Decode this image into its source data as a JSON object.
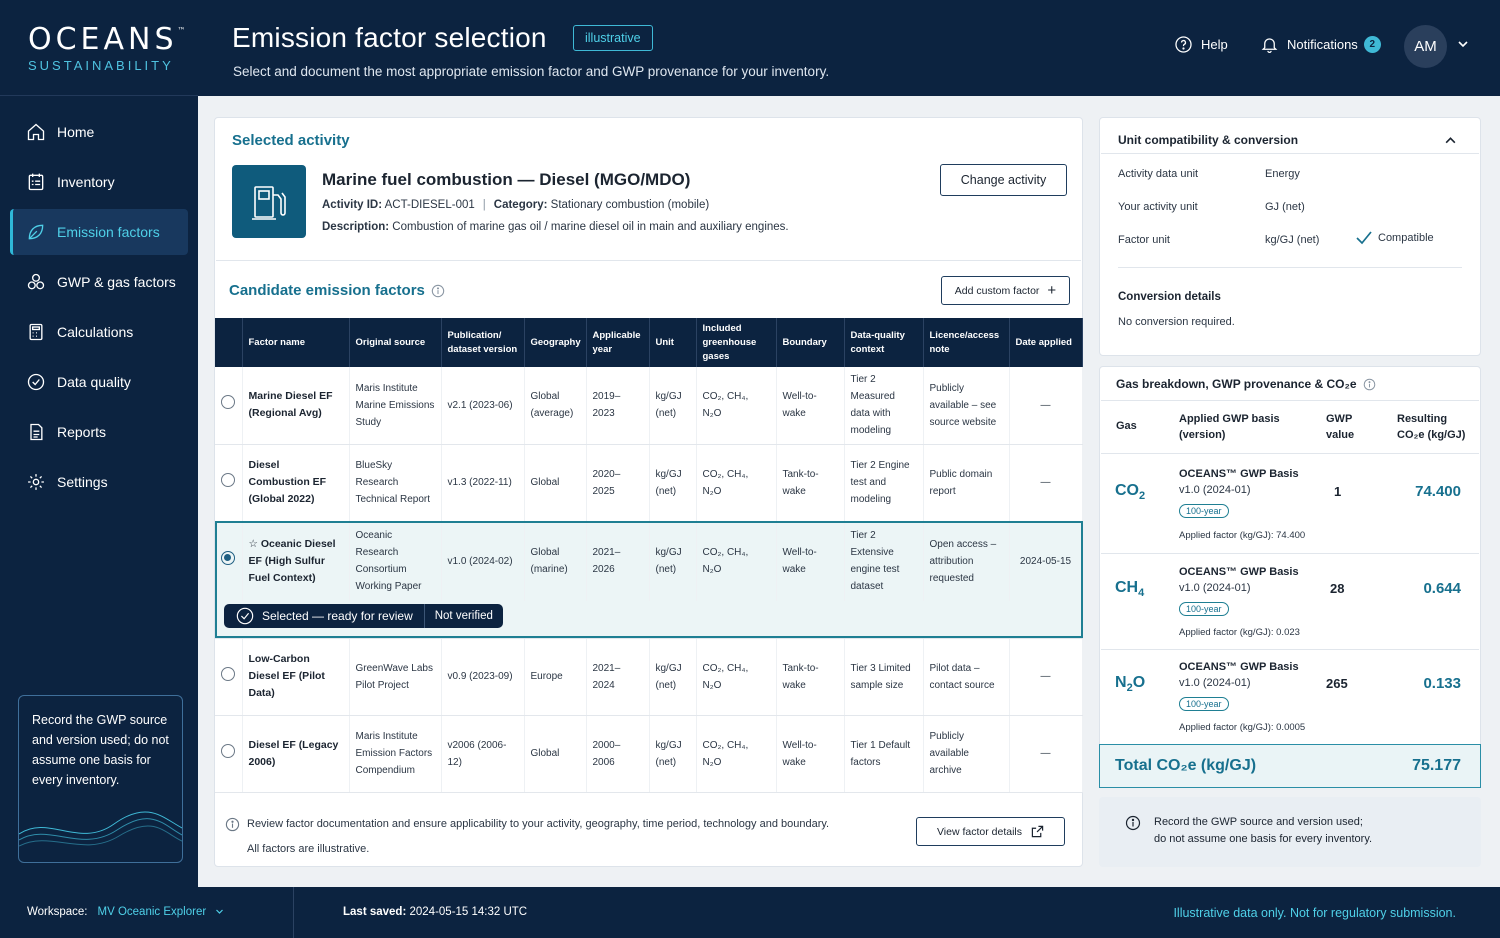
{
  "brand": {
    "name": "OCEANS",
    "tm": "™",
    "sub": "SUSTAINABILITY"
  },
  "nav": [
    {
      "label": "Home",
      "icon": "home-icon"
    },
    {
      "label": "Inventory",
      "icon": "inventory-icon"
    },
    {
      "label": "Emission factors",
      "icon": "leaf-icon",
      "active": true
    },
    {
      "label": "GWP & gas factors",
      "icon": "molecule-icon"
    },
    {
      "label": "Calculations",
      "icon": "calculator-icon"
    },
    {
      "label": "Data quality",
      "icon": "check-circle-icon"
    },
    {
      "label": "Reports",
      "icon": "report-icon"
    },
    {
      "label": "Settings",
      "icon": "gear-icon"
    }
  ],
  "tip": "Record the GWP source and version used; do not assume one basis for every inventory.",
  "header": {
    "title": "Emission factor selection",
    "badge": "illustrative",
    "subtitle": "Select and document the most appropriate emission factor and GWP provenance for your inventory.",
    "help": "Help",
    "notifications": "Notifications",
    "notif_count": "2",
    "avatar": "AM"
  },
  "activity": {
    "section": "Selected activity",
    "name": "Marine fuel combustion — Diesel (MGO/MDO)",
    "id_label": "Activity ID:",
    "id": "ACT-DIESEL-001",
    "cat_label": "Category:",
    "category": "Stationary combustion (mobile)",
    "desc_label": "Description:",
    "description": "Combustion of marine gas oil / marine diesel oil in main and auxiliary engines.",
    "change_btn": "Change activity"
  },
  "candidates": {
    "title": "Candidate emission factors",
    "add_btn": "Add custom factor",
    "columns": [
      "Factor name",
      "Original source",
      "Publication/ dataset version",
      "Geography",
      "Applicable year",
      "Unit",
      "Included greenhouse gases",
      "Boundary",
      "Data-quality context",
      "Licence/access note",
      "Date applied"
    ],
    "rows": [
      {
        "name": "Marine Diesel EF (Regional Avg)",
        "source": "Maris Institute Marine Emissions Study",
        "version": "v2.1 (2023-06)",
        "geo": "Global (average)",
        "year": "2019–2023",
        "unit": "kg/GJ (net)",
        "gases": "CO₂, CH₄, N₂O",
        "boundary": "Well-to-wake",
        "dq": "Tier 2 Measured data with modeling",
        "licence": "Publicly available – see source website",
        "date": "—"
      },
      {
        "name": "Diesel Combustion EF (Global 2022)",
        "source": "BlueSky Research Technical Report",
        "version": "v1.3 (2022-11)",
        "geo": "Global",
        "year": "2020–2025",
        "unit": "kg/GJ (net)",
        "gases": "CO₂, CH₄, N₂O",
        "boundary": "Tank-to-wake",
        "dq": "Tier 2 Engine test and modeling",
        "licence": "Public domain report",
        "date": "—"
      },
      {
        "name": "☆ Oceanic Diesel EF (High Sulfur Fuel Context)",
        "source": "Oceanic Research Consortium Working Paper",
        "version": "v1.0 (2024-02)",
        "geo": "Global (marine)",
        "year": "2021–2026",
        "unit": "kg/GJ (net)",
        "gases": "CO₂, CH₄, N₂O",
        "boundary": "Well-to-wake",
        "dq": "Tier 2 Extensive engine test dataset",
        "licence": "Open access – attribution requested",
        "date": "2024-05-15",
        "selected": true
      },
      {
        "name": "Low-Carbon Diesel EF (Pilot Data)",
        "source": "GreenWave Labs Pilot Project",
        "version": "v0.9 (2023-09)",
        "geo": "Europe",
        "year": "2021–2024",
        "unit": "kg/GJ (net)",
        "gases": "CO₂, CH₄, N₂O",
        "boundary": "Tank-to-wake",
        "dq": "Tier 3 Limited sample size",
        "licence": "Pilot data – contact source",
        "date": "—"
      },
      {
        "name": "Diesel EF (Legacy 2006)",
        "source": "Maris Institute Emission Factors Compendium",
        "version": "v2006 (2006-12)",
        "geo": "Global",
        "year": "2000–2006",
        "unit": "kg/GJ (net)",
        "gases": "CO₂, CH₄, N₂O",
        "boundary": "Well-to-wake",
        "dq": "Tier 1 Default factors",
        "licence": "Publicly available archive",
        "date": "—"
      }
    ],
    "selected_status": "Selected — ready for review",
    "verify_status": "Not verified",
    "footnote1": "Review factor documentation and ensure applicability to your activity, geography, time period, technology and boundary.",
    "footnote2": "All factors are illustrative.",
    "view_btn": "View factor details"
  },
  "unit": {
    "title": "Unit compatibility & conversion",
    "rows": [
      {
        "k": "Activity data unit",
        "v": "Energy"
      },
      {
        "k": "Your activity unit",
        "v": "GJ (net)"
      },
      {
        "k": "Factor unit",
        "v": "kg/GJ (net)"
      }
    ],
    "compatible": "Compatible",
    "conv_title": "Conversion details",
    "conv_text": "No conversion required."
  },
  "gas": {
    "title": "Gas breakdown, GWP provenance & CO₂e",
    "h_gas": "Gas",
    "h_basis": "Applied GWP basis (version)",
    "h_gwp": "GWP value",
    "h_res": "Resulting CO₂e (kg/GJ)",
    "rows": [
      {
        "sym": "CO",
        "sub": "2",
        "basis": "OCEANS™ GWP Basis",
        "ver": "v1.0 (2024-01)",
        "pill": "100-year",
        "applied": "Applied factor (kg/GJ): 74.400",
        "gwp": "1",
        "co2e": "74.400"
      },
      {
        "sym": "CH",
        "sub": "4",
        "basis": "OCEANS™ GWP Basis",
        "ver": "v1.0 (2024-01)",
        "pill": "100-year",
        "applied": "Applied factor (kg/GJ): 0.023",
        "gwp": "28",
        "co2e": "0.644"
      },
      {
        "sym": "N",
        "sub": "2",
        "sym2": "O",
        "basis": "OCEANS™ GWP Basis",
        "ver": "v1.0 (2024-01)",
        "pill": "100-year",
        "applied": "Applied factor (kg/GJ): 0.0005",
        "gwp": "265",
        "co2e": "0.133"
      }
    ],
    "total_label": "Total CO₂e (kg/GJ)",
    "total": "75.177"
  },
  "note": {
    "l1": "Record the GWP source and version used;",
    "l2": "do not assume one basis for every inventory."
  },
  "footer": {
    "ws_label": "Workspace:",
    "ws_value": "MV Oceanic Explorer",
    "saved_label": "Last saved:",
    "saved_value": "2024-05-15 14:32 UTC",
    "disclaimer": "Illustrative data only. Not for regulatory submission."
  }
}
